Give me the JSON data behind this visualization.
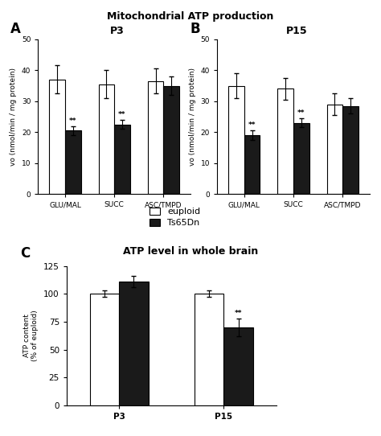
{
  "title_top": "Mitochondrial ATP production",
  "title_bottom": "ATP level in whole brain",
  "panel_A_title": "P3",
  "panel_B_title": "P15",
  "categories": [
    "GLU/MAL",
    "SUCC",
    "ASC/TMPD"
  ],
  "A_euploid": [
    37.0,
    35.5,
    36.5
  ],
  "A_euploid_err": [
    4.5,
    4.5,
    4.0
  ],
  "A_ts65dn": [
    20.5,
    22.5,
    35.0
  ],
  "A_ts65dn_err": [
    1.5,
    1.5,
    3.0
  ],
  "A_significant": [
    true,
    true,
    false
  ],
  "B_euploid": [
    35.0,
    34.0,
    29.0
  ],
  "B_euploid_err": [
    4.0,
    3.5,
    3.5
  ],
  "B_ts65dn": [
    19.0,
    23.0,
    28.5
  ],
  "B_ts65dn_err": [
    1.5,
    1.5,
    2.5
  ],
  "B_significant": [
    true,
    true,
    false
  ],
  "C_categories": [
    "P3",
    "P15"
  ],
  "C_euploid": [
    100.0,
    100.0
  ],
  "C_euploid_err": [
    3.0,
    3.0
  ],
  "C_ts65dn": [
    111.0,
    70.0
  ],
  "C_ts65dn_err": [
    5.0,
    8.0
  ],
  "C_significant": [
    false,
    true
  ],
  "ylabel_AB": "vo (nmol/min / mg protein)",
  "ylabel_C": "ATP content\n(% of euploid)",
  "ylim_AB": [
    0,
    50
  ],
  "yticks_AB": [
    0,
    10,
    20,
    30,
    40,
    50
  ],
  "ylim_C": [
    0,
    125
  ],
  "yticks_C": [
    0,
    25,
    50,
    75,
    100,
    125
  ],
  "color_euploid": "#ffffff",
  "color_ts65dn": "#1a1a1a",
  "edge_color": "#000000",
  "bar_width": 0.32,
  "legend_euploid": "euploid",
  "legend_ts65dn": "Ts65Dn"
}
